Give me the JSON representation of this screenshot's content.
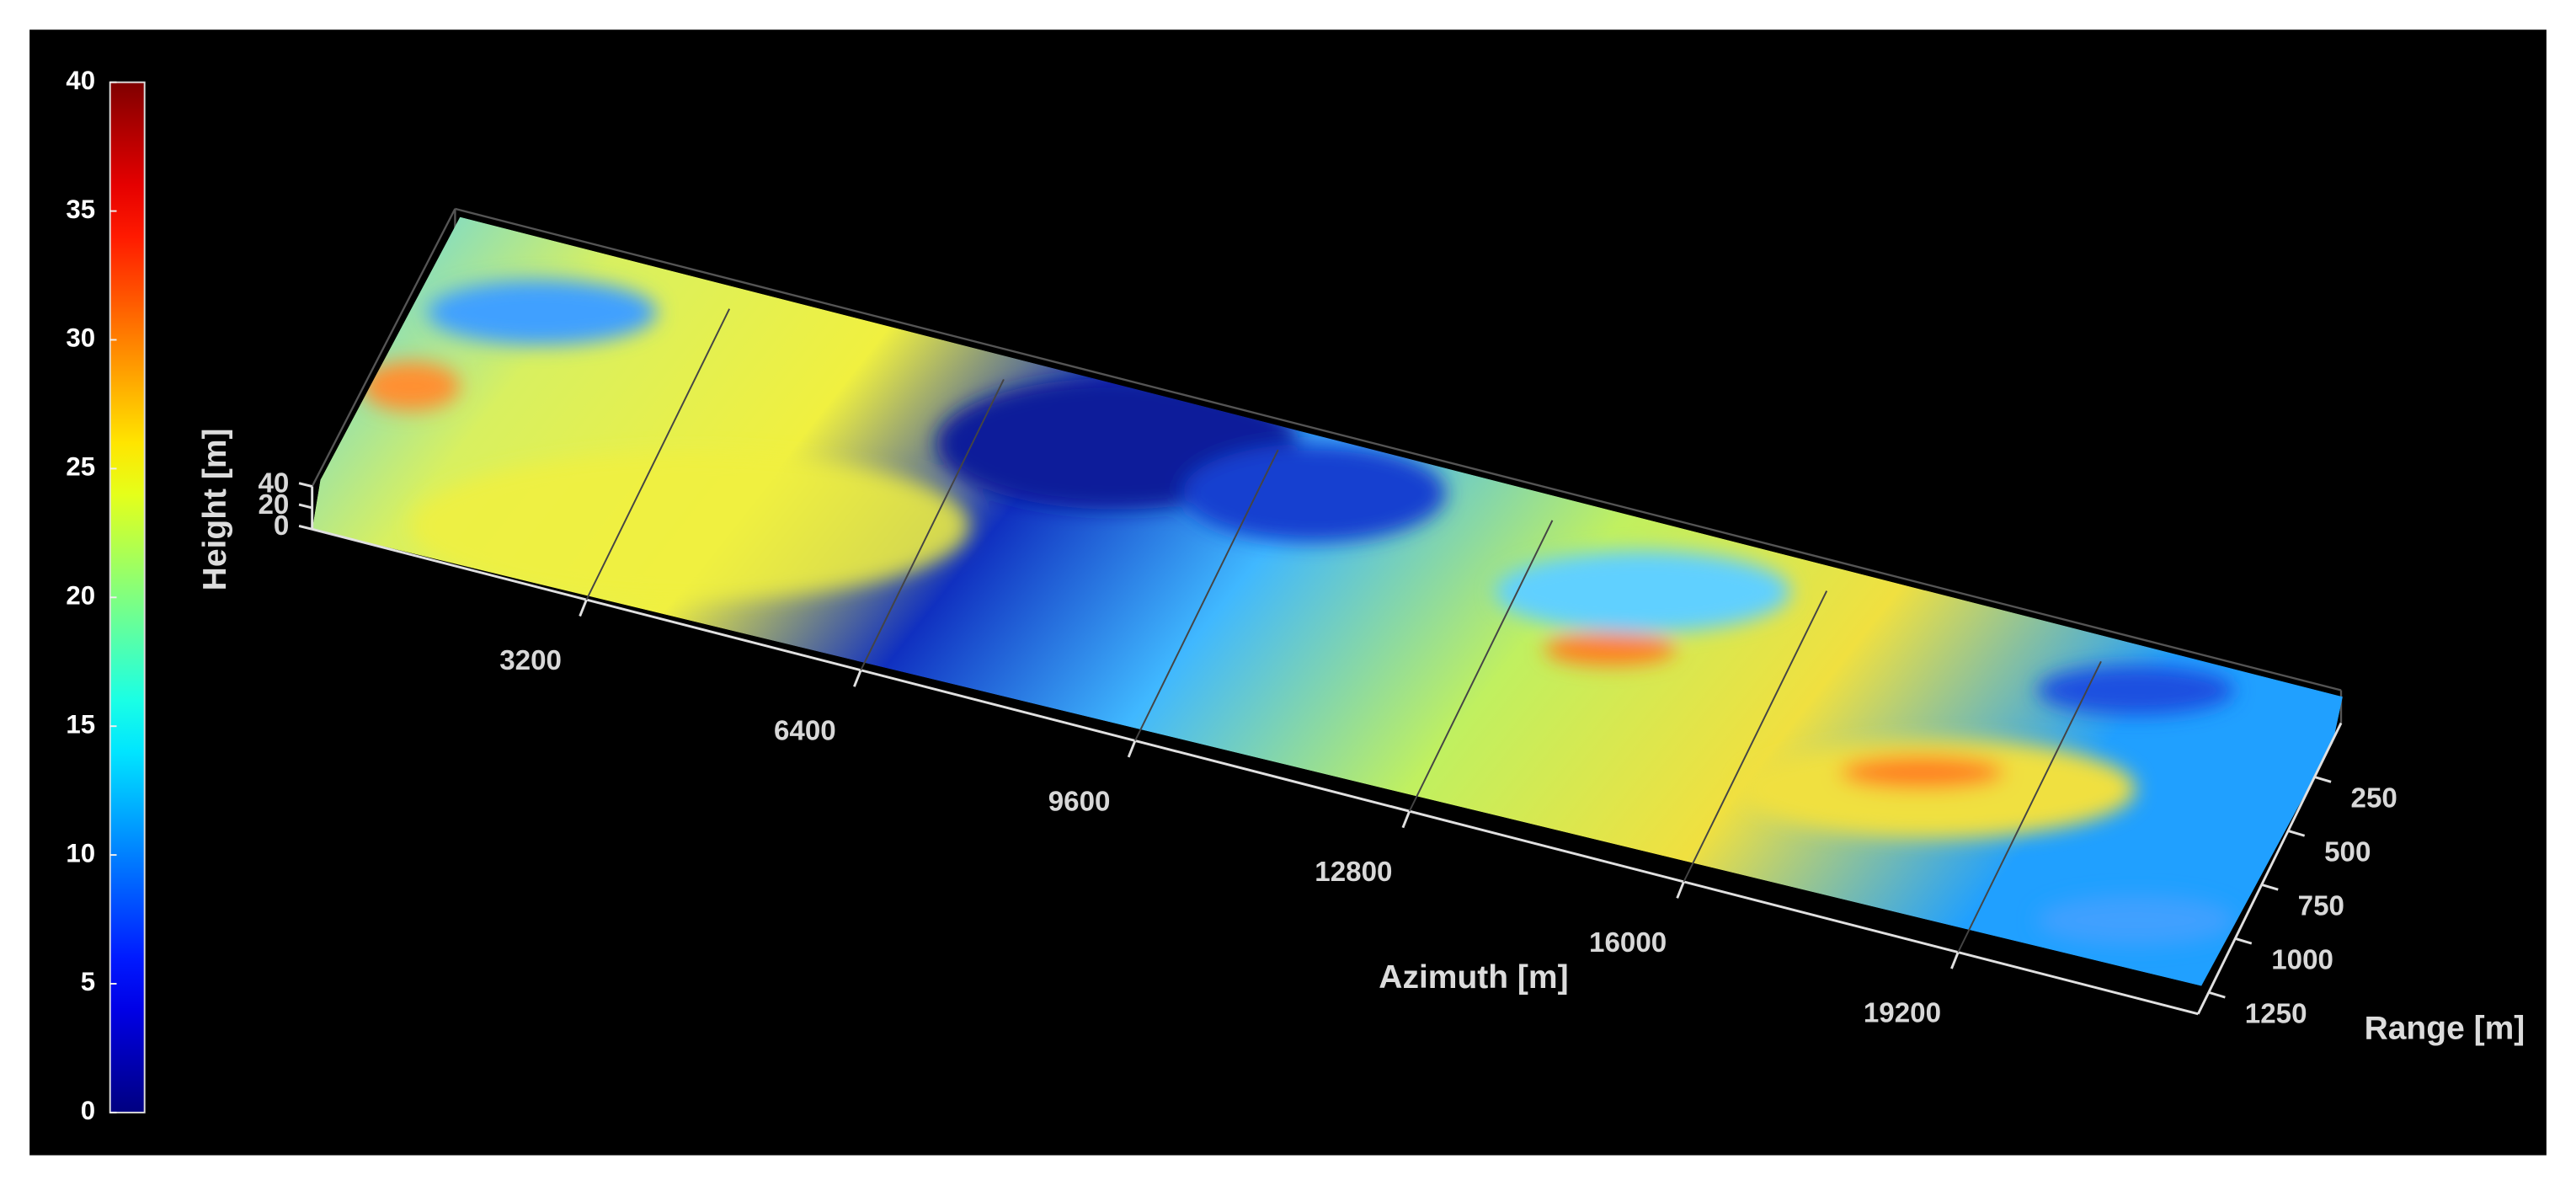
{
  "chart_data": {
    "type": "scatter3d",
    "xlabel": "Azimuth [m]",
    "ylabel": "Range [m]",
    "zlabel": "Height [m]",
    "xlim": [
      0,
      22000
    ],
    "xticks": [
      3200,
      6400,
      9600,
      12800,
      16000,
      19200
    ],
    "ylim": [
      0,
      1350
    ],
    "yticks": [
      250,
      500,
      750,
      1000,
      1250
    ],
    "zlim": [
      0,
      40
    ],
    "zticks": [
      0,
      20,
      40
    ],
    "colormap": "jet",
    "clim": [
      0,
      40
    ],
    "cticks": [
      0,
      5,
      10,
      15,
      20,
      25,
      30,
      35,
      40
    ],
    "grid": true
  }
}
